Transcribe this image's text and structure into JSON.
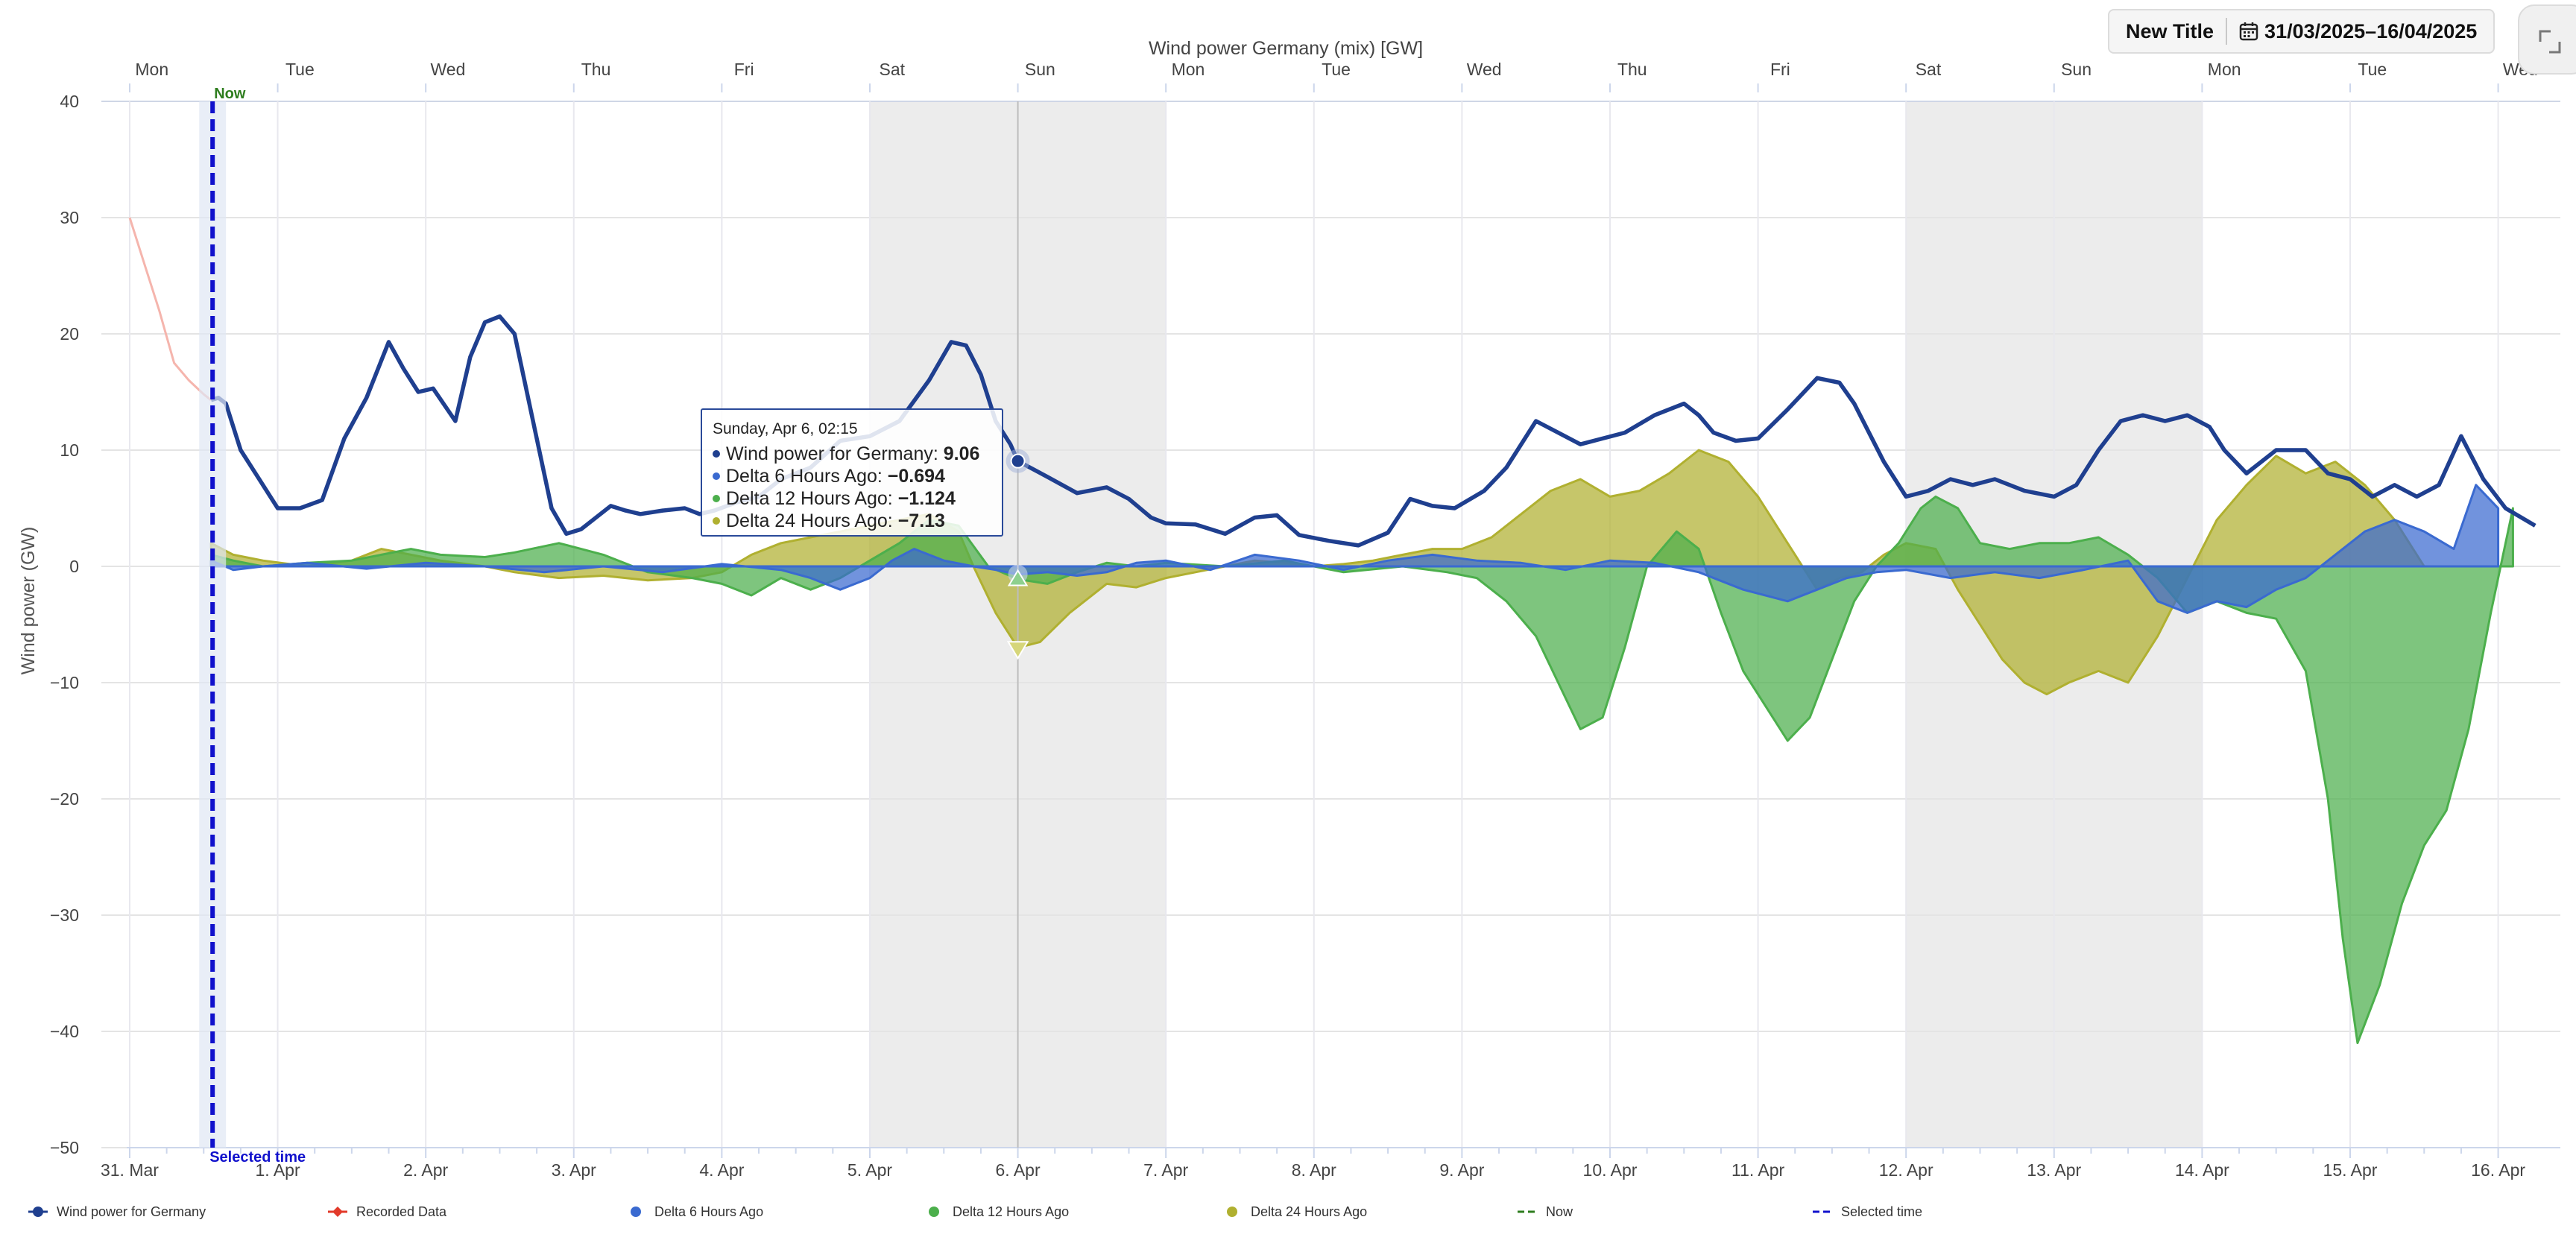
{
  "header": {
    "title_button": "New Title",
    "date_range": "31/03/2025–16/04/2025"
  },
  "tooltip": {
    "title": "Sunday, Apr 6, 02:15",
    "rows": [
      {
        "label": "Wind power for Germany: ",
        "value": "9.06",
        "color": "#1f3f8f"
      },
      {
        "label": "Delta 6 Hours Ago: ",
        "value": "−0.694",
        "color": "#3a6ad0"
      },
      {
        "label": "Delta 12 Hours Ago: ",
        "value": "−1.124",
        "color": "#4caf4c"
      },
      {
        "label": "Delta 24 Hours Ago: ",
        "value": "−7.13",
        "color": "#b0b030"
      }
    ]
  },
  "markers": {
    "now_label": "Now",
    "selected_label": "Selected time"
  },
  "chart_data": {
    "type": "area",
    "title": "Wind power Germany (mix) [GW]",
    "ylabel": "Wind power (GW)",
    "xlabel": "",
    "ylim": [
      -50,
      40
    ],
    "yticks": [
      40,
      30,
      20,
      10,
      0,
      -10,
      -20,
      -30,
      -40,
      -50
    ],
    "xlim": [
      -0.02,
      16.42
    ],
    "x_unit": "days since 31. Mar 2025",
    "grid": true,
    "legend_position": "bottom",
    "bottom_ticks": [
      {
        "x": 0,
        "label": "31. Mar"
      },
      {
        "x": 1,
        "label": "1. Apr"
      },
      {
        "x": 2,
        "label": "2. Apr"
      },
      {
        "x": 3,
        "label": "3. Apr"
      },
      {
        "x": 4,
        "label": "4. Apr"
      },
      {
        "x": 5,
        "label": "5. Apr"
      },
      {
        "x": 6,
        "label": "6. Apr"
      },
      {
        "x": 7,
        "label": "7. Apr"
      },
      {
        "x": 8,
        "label": "8. Apr"
      },
      {
        "x": 9,
        "label": "9. Apr"
      },
      {
        "x": 10,
        "label": "10. Apr"
      },
      {
        "x": 11,
        "label": "11. Apr"
      },
      {
        "x": 12,
        "label": "12. Apr"
      },
      {
        "x": 13,
        "label": "13. Apr"
      },
      {
        "x": 14,
        "label": "14. Apr"
      },
      {
        "x": 15,
        "label": "15. Apr"
      },
      {
        "x": 16,
        "label": "16. Apr"
      }
    ],
    "top_ticks": [
      {
        "x": 0.15,
        "label": "Mon"
      },
      {
        "x": 1.15,
        "label": "Tue"
      },
      {
        "x": 2.15,
        "label": "Wed"
      },
      {
        "x": 3.15,
        "label": "Thu"
      },
      {
        "x": 4.15,
        "label": "Fri"
      },
      {
        "x": 5.15,
        "label": "Sat"
      },
      {
        "x": 6.15,
        "label": "Sun"
      },
      {
        "x": 7.15,
        "label": "Mon"
      },
      {
        "x": 8.15,
        "label": "Tue"
      },
      {
        "x": 9.15,
        "label": "Wed"
      },
      {
        "x": 10.15,
        "label": "Thu"
      },
      {
        "x": 11.15,
        "label": "Fri"
      },
      {
        "x": 12.15,
        "label": "Sat"
      },
      {
        "x": 13.15,
        "label": "Sun"
      },
      {
        "x": 14.15,
        "label": "Mon"
      },
      {
        "x": 15.15,
        "label": "Tue"
      },
      {
        "x": 16.15,
        "label": "Wed"
      }
    ],
    "weekend_bands": [
      [
        5,
        7
      ],
      [
        12,
        14
      ]
    ],
    "now_x": 0.56,
    "selected_x": 0.56,
    "hover_x": 6.0,
    "series": [
      {
        "name": "Wind power for Germany",
        "color": "#1f3f8f",
        "kind": "line",
        "x": [
          0.55,
          0.6,
          0.65,
          0.75,
          0.85,
          1.0,
          1.15,
          1.3,
          1.45,
          1.6,
          1.75,
          1.85,
          1.95,
          2.05,
          2.2,
          2.3,
          2.4,
          2.5,
          2.6,
          2.75,
          2.85,
          2.95,
          3.05,
          3.25,
          3.35,
          3.45,
          3.6,
          3.75,
          3.85,
          3.95,
          4.1,
          4.25,
          4.4,
          4.6,
          4.8,
          5.0,
          5.2,
          5.4,
          5.55,
          5.65,
          5.75,
          5.85,
          5.95,
          6.0,
          6.2,
          6.4,
          6.6,
          6.75,
          6.9,
          7.0,
          7.2,
          7.4,
          7.6,
          7.75,
          7.9,
          8.1,
          8.3,
          8.5,
          8.65,
          8.8,
          8.95,
          9.15,
          9.3,
          9.5,
          9.65,
          9.8,
          9.95,
          10.1,
          10.3,
          10.5,
          10.6,
          10.7,
          10.85,
          11.0,
          11.2,
          11.4,
          11.55,
          11.65,
          11.75,
          11.85,
          12.0,
          12.15,
          12.3,
          12.45,
          12.6,
          12.8,
          13.0,
          13.15,
          13.3,
          13.45,
          13.6,
          13.75,
          13.9,
          14.05,
          14.15,
          14.3,
          14.5,
          14.7,
          14.85,
          15.0,
          15.15,
          15.3,
          15.45,
          15.6,
          15.75,
          15.9,
          16.05,
          16.25
        ],
        "y": [
          14.3,
          14.5,
          14.0,
          10.0,
          8.0,
          5.0,
          5.0,
          5.7,
          11.0,
          14.5,
          19.3,
          17.0,
          15.0,
          15.3,
          12.5,
          18.0,
          21.0,
          21.5,
          20.0,
          11.0,
          5.0,
          2.8,
          3.2,
          5.2,
          4.8,
          4.5,
          4.8,
          5.0,
          4.5,
          4.8,
          5.5,
          6.0,
          7.5,
          8.5,
          10.8,
          11.2,
          12.5,
          16.0,
          19.3,
          19.0,
          16.5,
          12.5,
          10.5,
          9.06,
          7.7,
          6.3,
          6.8,
          5.8,
          4.2,
          3.7,
          3.6,
          2.8,
          4.2,
          4.4,
          2.7,
          2.2,
          1.8,
          2.9,
          5.8,
          5.2,
          5.0,
          6.5,
          8.5,
          12.5,
          11.5,
          10.5,
          11.0,
          11.5,
          13.0,
          14.0,
          13.0,
          11.5,
          10.8,
          11.0,
          13.5,
          16.2,
          15.8,
          14.0,
          11.5,
          9.0,
          6.0,
          6.5,
          7.5,
          7.0,
          7.5,
          6.5,
          6.0,
          7.0,
          10.0,
          12.5,
          13.0,
          12.5,
          13.0,
          12.0,
          10.0,
          8.0,
          10.0,
          10.0,
          8.0,
          7.5,
          6.0,
          7.0,
          6.0,
          7.0,
          11.2,
          7.5,
          5.0,
          3.5
        ]
      },
      {
        "name": "Recorded Data",
        "color": "#e23a2a",
        "kind": "line",
        "x": [
          0.0,
          0.05,
          0.1,
          0.2,
          0.3,
          0.4,
          0.5,
          0.55
        ],
        "y": [
          30.0,
          28.0,
          26.0,
          22.0,
          17.5,
          16.0,
          14.8,
          14.3
        ]
      },
      {
        "name": "Delta 24 Hours Ago",
        "color": "#b0b030",
        "kind": "area",
        "x": [
          0.55,
          0.7,
          0.9,
          1.2,
          1.5,
          1.7,
          1.9,
          2.1,
          2.4,
          2.6,
          2.9,
          3.2,
          3.5,
          3.8,
          4.0,
          4.2,
          4.4,
          4.6,
          4.8,
          5.0,
          5.2,
          5.4,
          5.6,
          5.7,
          5.85,
          6.0,
          6.15,
          6.35,
          6.6,
          6.8,
          7.0,
          7.2,
          7.4,
          7.6,
          7.8,
          8.0,
          8.2,
          8.4,
          8.6,
          8.8,
          9.0,
          9.2,
          9.4,
          9.6,
          9.8,
          10.0,
          10.2,
          10.4,
          10.6,
          10.8,
          11.0,
          11.2,
          11.4,
          11.55,
          11.7,
          11.85,
          12.0,
          12.2,
          12.35,
          12.5,
          12.65,
          12.8,
          12.95,
          13.1,
          13.3,
          13.5,
          13.7,
          13.9,
          14.1,
          14.3,
          14.5,
          14.7,
          14.9,
          15.1,
          15.3,
          15.5
        ],
        "y": [
          2.0,
          1.0,
          0.5,
          0.0,
          0.5,
          1.5,
          1.0,
          0.5,
          0.0,
          -0.5,
          -1.0,
          -0.8,
          -1.2,
          -1.0,
          -0.5,
          1.0,
          2.0,
          2.5,
          3.0,
          3.5,
          4.0,
          4.5,
          3.0,
          0.0,
          -4.0,
          -7.0,
          -6.5,
          -4.0,
          -1.5,
          -1.8,
          -1.0,
          -0.5,
          0.0,
          0.5,
          0.3,
          0.0,
          0.2,
          0.5,
          1.0,
          1.5,
          1.5,
          2.5,
          4.5,
          6.5,
          7.5,
          6.0,
          6.5,
          8.0,
          10.0,
          9.0,
          6.0,
          2.0,
          -2.0,
          -1.0,
          -0.5,
          1.0,
          2.0,
          1.5,
          -2.0,
          -5.0,
          -8.0,
          -10.0,
          -11.0,
          -10.0,
          -9.0,
          -10.0,
          -6.0,
          -1.0,
          4.0,
          7.0,
          9.5,
          8.0,
          9.0,
          7.0,
          4.0,
          0.0
        ]
      },
      {
        "name": "Delta 12 Hours Ago",
        "color": "#4caf4c",
        "kind": "area",
        "x": [
          0.55,
          0.7,
          0.9,
          1.2,
          1.5,
          1.7,
          1.9,
          2.1,
          2.4,
          2.6,
          2.9,
          3.2,
          3.5,
          3.8,
          4.0,
          4.2,
          4.4,
          4.6,
          4.8,
          5.0,
          5.2,
          5.4,
          5.6,
          5.8,
          6.0,
          6.2,
          6.4,
          6.6,
          6.8,
          7.0,
          7.4,
          7.8,
          8.2,
          8.6,
          8.9,
          9.1,
          9.3,
          9.5,
          9.65,
          9.8,
          9.95,
          10.1,
          10.25,
          10.45,
          10.6,
          10.75,
          10.9,
          11.05,
          11.2,
          11.35,
          11.5,
          11.65,
          11.8,
          11.95,
          12.1,
          12.2,
          12.35,
          12.5,
          12.7,
          12.9,
          13.1,
          13.3,
          13.5,
          13.7,
          13.9,
          14.1,
          14.3,
          14.5,
          14.7,
          14.85,
          14.95,
          15.05,
          15.2,
          15.35,
          15.5,
          15.65,
          15.8,
          15.95,
          16.1
        ],
        "y": [
          1.0,
          0.5,
          0.0,
          0.3,
          0.5,
          1.0,
          1.5,
          1.0,
          0.8,
          1.2,
          2.0,
          1.0,
          -0.5,
          -1.0,
          -1.5,
          -2.5,
          -1.0,
          -2.0,
          -1.0,
          0.5,
          2.0,
          4.0,
          3.5,
          0.0,
          -1.1,
          -1.5,
          -0.5,
          0.3,
          0.0,
          0.3,
          0.0,
          0.5,
          -0.5,
          0.0,
          -0.5,
          -1.0,
          -3.0,
          -6.0,
          -10.0,
          -14.0,
          -13.0,
          -7.0,
          0.0,
          3.0,
          1.5,
          -4.0,
          -9.0,
          -12.0,
          -15.0,
          -13.0,
          -8.0,
          -3.0,
          0.0,
          2.0,
          5.0,
          6.0,
          5.0,
          2.0,
          1.5,
          2.0,
          2.0,
          2.5,
          1.0,
          -1.0,
          -4.0,
          -3.0,
          -4.0,
          -4.5,
          -9.0,
          -20.0,
          -32.0,
          -41.0,
          -36.0,
          -29.0,
          -24.0,
          -21.0,
          -14.0,
          -4.0,
          5.0
        ]
      },
      {
        "name": "Delta 6 Hours Ago",
        "color": "#3a6ad0",
        "kind": "area",
        "x": [
          0.55,
          0.7,
          0.9,
          1.2,
          1.6,
          2.0,
          2.4,
          2.8,
          3.2,
          3.6,
          4.0,
          4.4,
          4.6,
          4.8,
          5.0,
          5.15,
          5.3,
          5.5,
          5.7,
          5.85,
          6.0,
          6.2,
          6.4,
          6.6,
          6.8,
          7.0,
          7.3,
          7.6,
          7.9,
          8.2,
          8.5,
          8.8,
          9.1,
          9.4,
          9.7,
          10.0,
          10.3,
          10.6,
          10.9,
          11.2,
          11.4,
          11.6,
          11.8,
          12.0,
          12.3,
          12.6,
          12.9,
          13.2,
          13.5,
          13.7,
          13.9,
          14.1,
          14.3,
          14.5,
          14.7,
          14.9,
          15.1,
          15.3,
          15.5,
          15.7,
          15.85,
          16.0
        ],
        "y": [
          0.5,
          -0.3,
          0.0,
          0.3,
          -0.2,
          0.3,
          0.0,
          -0.5,
          0.0,
          -0.5,
          0.2,
          -0.3,
          -1.0,
          -2.0,
          -1.0,
          0.5,
          1.5,
          0.5,
          0.0,
          -0.3,
          -0.7,
          -0.5,
          -0.8,
          -0.5,
          0.3,
          0.5,
          -0.3,
          1.0,
          0.5,
          -0.3,
          0.5,
          1.0,
          0.5,
          0.3,
          -0.3,
          0.5,
          0.3,
          -0.5,
          -2.0,
          -3.0,
          -2.0,
          -1.0,
          -0.5,
          -0.3,
          -1.0,
          -0.5,
          -1.0,
          -0.3,
          0.5,
          -3.0,
          -4.0,
          -3.0,
          -3.5,
          -2.0,
          -1.0,
          1.0,
          3.0,
          4.0,
          3.0,
          1.5,
          7.0,
          5.0
        ]
      }
    ],
    "legend": [
      {
        "name": "Wind power for Germany",
        "color": "#1f3f8f",
        "symbol": "line-dot"
      },
      {
        "name": "Recorded Data",
        "color": "#e23a2a",
        "symbol": "line-diamond"
      },
      {
        "name": "Delta 6 Hours Ago",
        "color": "#3a6ad0",
        "symbol": "dot"
      },
      {
        "name": "Delta 12 Hours Ago",
        "color": "#4caf4c",
        "symbol": "dot"
      },
      {
        "name": "Delta 24 Hours Ago",
        "color": "#b0b030",
        "symbol": "dot"
      },
      {
        "name": "Now",
        "color": "#2e7d1e",
        "symbol": "dash"
      },
      {
        "name": "Selected time",
        "color": "#1111cc",
        "symbol": "dash"
      }
    ]
  }
}
